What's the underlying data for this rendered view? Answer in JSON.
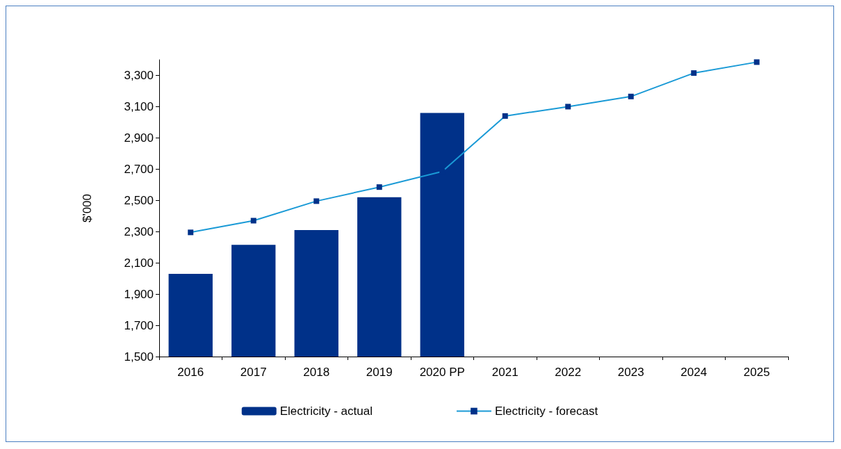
{
  "chart_data": {
    "type": "bar",
    "ylabel": "$'000",
    "categories": [
      "2016",
      "2017",
      "2018",
      "2019",
      "2020 PP",
      "2021",
      "2022",
      "2023",
      "2024",
      "2025"
    ],
    "series": [
      {
        "name": "Electricity - actual",
        "color": "#003189",
        "values": [
          2030,
          2215,
          2310,
          2520,
          3060,
          null,
          null,
          null,
          null,
          null
        ]
      },
      {
        "name": "Electricity - forecast",
        "type": "line",
        "color": "#1a9ad6",
        "marker": "square",
        "values": [
          2295,
          2370,
          2495,
          2585,
          2685,
          3040,
          3100,
          3165,
          3315,
          3385
        ]
      }
    ],
    "ylim": [
      1500,
      3400
    ],
    "yticks": [
      {
        "value": 1500,
        "label": "1,500"
      },
      {
        "value": 1700,
        "label": "1,700"
      },
      {
        "value": 1900,
        "label": "1,900"
      },
      {
        "value": 2100,
        "label": "2,100"
      },
      {
        "value": 2300,
        "label": "2,300"
      },
      {
        "value": 2500,
        "label": "2,500"
      },
      {
        "value": 2700,
        "label": "2,700"
      },
      {
        "value": 2900,
        "label": "2,900"
      },
      {
        "value": 3100,
        "label": "3,100"
      },
      {
        "value": 3300,
        "label": "3,300"
      }
    ],
    "grid": false,
    "legend": "bottom"
  }
}
